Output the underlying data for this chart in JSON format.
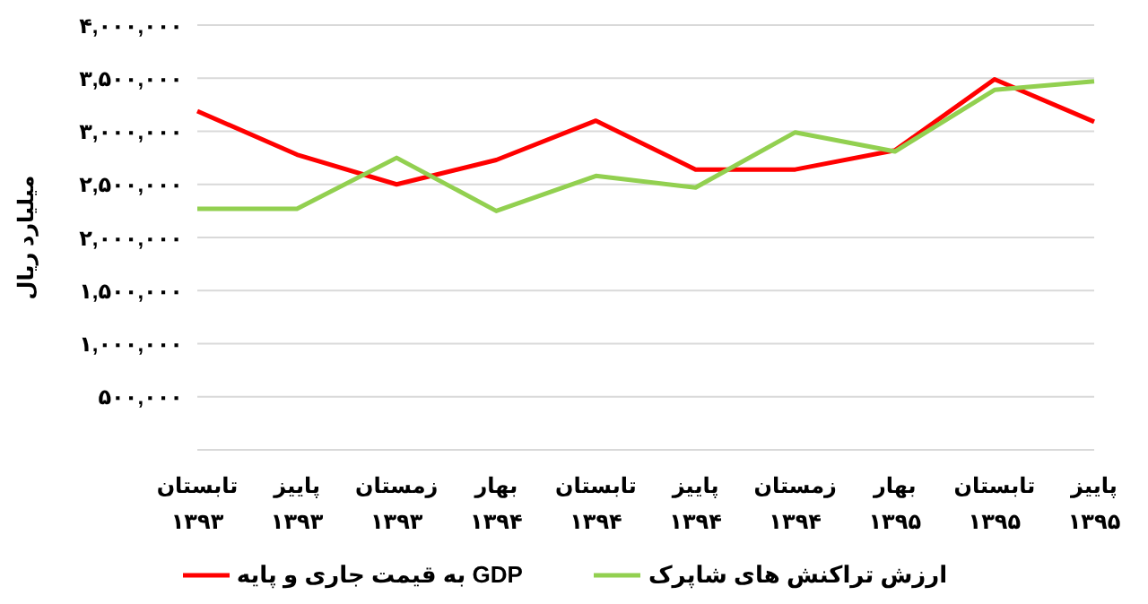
{
  "chart_data": {
    "type": "line",
    "ylabel": "میلیارد ریال",
    "categories": [
      "تابستان\n۱۳۹۳",
      "پاییز\n۱۳۹۳",
      "زمستان\n۱۳۹۳",
      "بهار\n۱۳۹۴",
      "تابستان\n۱۳۹۴",
      "پاییز\n۱۳۹۴",
      "زمستان\n۱۳۹۴",
      "بهار\n۱۳۹۵",
      "تابستان\n۱۳۹۵",
      "پاییز\n۱۳۹۵"
    ],
    "series": [
      {
        "name": "GDP به قیمت جاری و پایه",
        "color": "#ff0000",
        "values": [
          3190000,
          2780000,
          2500000,
          2730000,
          3100000,
          2640000,
          2640000,
          2820000,
          3490000,
          3090000
        ]
      },
      {
        "name": "ارزش تراکنش های شاپرک",
        "color": "#92d050",
        "values": [
          2270000,
          2270000,
          2750000,
          2250000,
          2580000,
          2470000,
          2990000,
          2810000,
          3390000,
          3470000
        ]
      }
    ],
    "ylim": [
      0,
      4000000
    ],
    "yticks": [
      {
        "value": 500000,
        "label": "۵۰۰,۰۰۰"
      },
      {
        "value": 1000000,
        "label": "۱,۰۰۰,۰۰۰"
      },
      {
        "value": 1500000,
        "label": "۱,۵۰۰,۰۰۰"
      },
      {
        "value": 2000000,
        "label": "۲,۰۰۰,۰۰۰"
      },
      {
        "value": 2500000,
        "label": "۲,۵۰۰,۰۰۰"
      },
      {
        "value": 3000000,
        "label": "۳,۰۰۰,۰۰۰"
      },
      {
        "value": 3500000,
        "label": "۳,۵۰۰,۰۰۰"
      },
      {
        "value": 4000000,
        "label": "۴,۰۰۰,۰۰۰"
      }
    ],
    "grid": "y",
    "legend": "bottom",
    "marker": "none",
    "line_style": "solid"
  }
}
